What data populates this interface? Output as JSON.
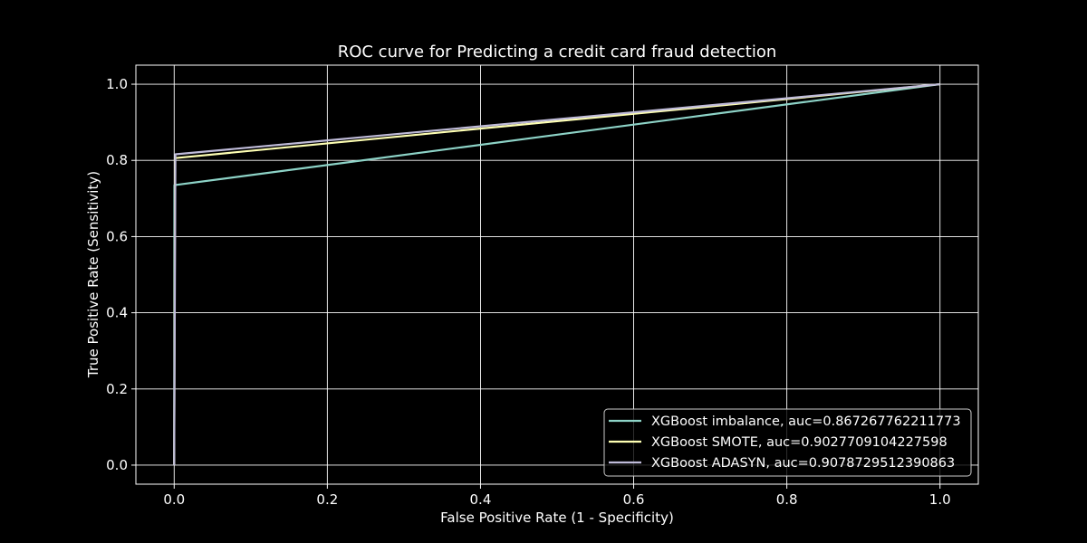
{
  "chart_data": {
    "type": "line",
    "title": "ROC curve for Predicting a credit card fraud detection",
    "xlabel": "False Positive Rate (1 - Specificity)",
    "ylabel": "True Positive Rate (Sensitivity)",
    "xlim": [
      -0.05,
      1.05
    ],
    "ylim": [
      -0.05,
      1.05
    ],
    "xticks": [
      0.0,
      0.2,
      0.4,
      0.6,
      0.8,
      1.0
    ],
    "yticks": [
      0.0,
      0.2,
      0.4,
      0.6,
      0.8,
      1.0
    ],
    "xtick_labels": [
      "0.0",
      "0.2",
      "0.4",
      "0.6",
      "0.8",
      "1.0"
    ],
    "ytick_labels": [
      "0.0",
      "0.2",
      "0.4",
      "0.6",
      "0.8",
      "1.0"
    ],
    "grid": true,
    "legend_position": "bottom-right",
    "background": "#000000",
    "foreground": "#ffffff",
    "series": [
      {
        "name": "XGBoost imbalance, auc=0.867267762211773",
        "color": "#8dd3c7",
        "x": [
          0.0,
          0.0003,
          1.0
        ],
        "y": [
          0.0,
          0.735,
          1.0
        ]
      },
      {
        "name": "XGBoost SMOTE, auc=0.9027709104227598",
        "color": "#feffb3",
        "x": [
          0.0,
          0.0012,
          1.0
        ],
        "y": [
          0.0,
          0.806,
          1.0
        ]
      },
      {
        "name": "XGBoost ADASYN, auc=0.9078729512390863",
        "color": "#bfbbd9",
        "x": [
          0.0,
          0.0016,
          1.0
        ],
        "y": [
          0.0,
          0.816,
          1.0
        ]
      }
    ]
  }
}
